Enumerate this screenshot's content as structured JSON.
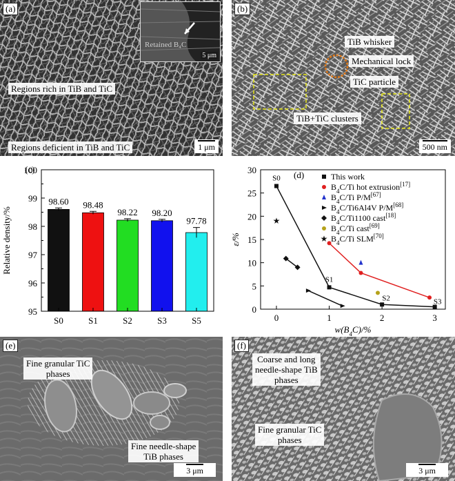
{
  "panels": {
    "a": {
      "label": "(a)",
      "notes": [
        "Regions rich in TiB and TiC",
        "Regions deficient in TiB and TiC"
      ],
      "inset_label": "Retained B₄C",
      "inset_scale": "5 μm",
      "scale": "1 μm"
    },
    "b": {
      "label": "(b)",
      "notes": [
        "TiB whisker",
        "Mechanical lock",
        "TiC particle",
        "TiB+TiC clusters"
      ],
      "scale": "500 nm"
    },
    "e": {
      "label": "(e)",
      "notes": [
        "Fine granular TiC\nphases",
        "Fine needle-shape\nTiB phases"
      ],
      "scale": "3 μm"
    },
    "f": {
      "label": "(f)",
      "notes": [
        "Coarse and long\nneedle-shape TiB\nphases",
        "Fine granular TiC\nphases"
      ],
      "scale": "3 μm"
    }
  },
  "chart_data": [
    {
      "panel": "(c)",
      "type": "bar",
      "categories": [
        "S0",
        "S1",
        "S2",
        "S3",
        "S5"
      ],
      "values": [
        98.6,
        98.48,
        98.22,
        98.2,
        97.78
      ],
      "value_labels": [
        "98.60",
        "98.48",
        "98.22",
        "98.20",
        "97.78"
      ],
      "errors": [
        0.05,
        0.05,
        0.05,
        0.05,
        0.18
      ],
      "colors": [
        "#111111",
        "#ee1111",
        "#22dd22",
        "#1111ee",
        "#22eeee"
      ],
      "ylabel": "Relative density/%",
      "ylim": [
        95,
        100
      ],
      "yticks": [
        "95",
        "96",
        "97",
        "98",
        "99",
        "100"
      ]
    },
    {
      "panel": "(d)",
      "type": "scatter",
      "xlabel": "w(B₄C)/%",
      "ylabel": "ε/%",
      "xlim": [
        -0.3,
        3.2
      ],
      "ylim": [
        0,
        30
      ],
      "xticks": [
        "0",
        "1",
        "2",
        "3"
      ],
      "yticks": [
        "0",
        "5",
        "10",
        "15",
        "20",
        "25",
        "30"
      ],
      "legend_position": "top-right",
      "series": [
        {
          "name": "This work",
          "color": "#111111",
          "marker": "square",
          "line": true,
          "x": [
            0,
            1,
            2,
            3
          ],
          "y": [
            26.5,
            4.7,
            1.0,
            0.5
          ],
          "point_labels": [
            "S0",
            "S1",
            "S2",
            "S3"
          ]
        },
        {
          "name": "B₄C/Ti hot extrusion[17]",
          "color": "#e02020",
          "marker": "circle",
          "line": true,
          "x": [
            1,
            1.6,
            2.9
          ],
          "y": [
            14.2,
            7.8,
            2.5
          ]
        },
        {
          "name": "B₄C/Ti P/M[67]",
          "color": "#2233cc",
          "marker": "triangle",
          "line": false,
          "x": [
            1.6
          ],
          "y": [
            10.0
          ]
        },
        {
          "name": "B₄C/Ti6Al4V P/M[68]",
          "color": "#111111",
          "marker": "triangle-right",
          "line": true,
          "x": [
            0.6,
            1.25
          ],
          "y": [
            4.0,
            0.7
          ]
        },
        {
          "name": "B₄C/Ti1100 cast[18]",
          "color": "#111111",
          "marker": "diamond",
          "line": true,
          "x": [
            0.18,
            0.4
          ],
          "y": [
            10.9,
            9.0
          ]
        },
        {
          "name": "B₄C/Ti cast[69]",
          "color": "#b5a21a",
          "marker": "circle",
          "line": false,
          "x": [
            1.92
          ],
          "y": [
            3.5
          ]
        },
        {
          "name": "B₄C/Ti SLM[70]",
          "color": "#111111",
          "marker": "star",
          "line": false,
          "x": [
            0
          ],
          "y": [
            19.0
          ]
        }
      ]
    }
  ]
}
